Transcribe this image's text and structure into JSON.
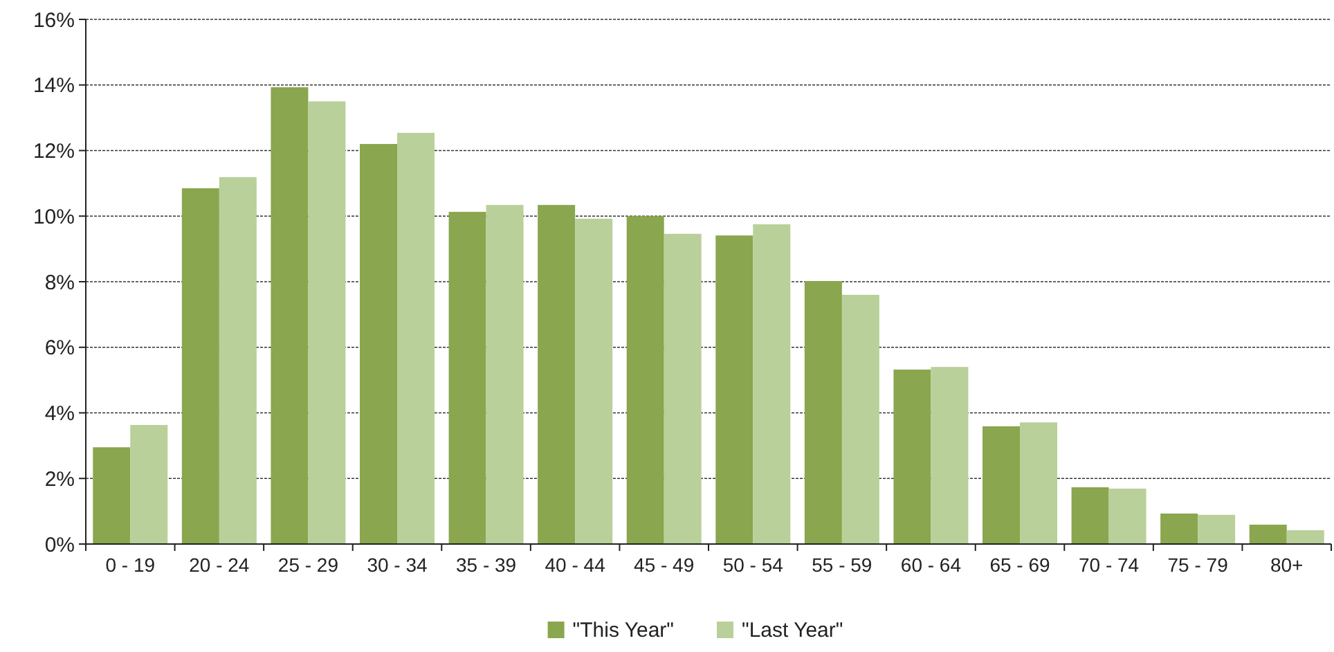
{
  "chart_data": {
    "type": "bar",
    "categories": [
      "0 - 19",
      "20 - 24",
      "25 - 29",
      "30 - 34",
      "35 - 39",
      "40 - 44",
      "45 - 49",
      "50 - 54",
      "55 - 59",
      "60 - 64",
      "65 - 69",
      "70 - 74",
      "75 - 79",
      "80+"
    ],
    "series": [
      {
        "name": "\"This Year\"",
        "color": "#8aa64e",
        "values": [
          2.95,
          10.85,
          13.93,
          12.2,
          10.13,
          10.34,
          10.0,
          9.41,
          8.02,
          5.32,
          3.59,
          1.73,
          0.93,
          0.59
        ]
      },
      {
        "name": "\"Last Year\"",
        "color": "#b9d09a",
        "values": [
          3.63,
          11.19,
          13.5,
          12.54,
          10.34,
          9.92,
          9.46,
          9.75,
          7.6,
          5.4,
          3.71,
          1.69,
          0.89,
          0.42
        ]
      }
    ],
    "ylim": [
      0,
      16
    ],
    "yticks": [
      {
        "value": 0,
        "label": "0%"
      },
      {
        "value": 2,
        "label": "2%"
      },
      {
        "value": 4,
        "label": "4%"
      },
      {
        "value": 6,
        "label": "6%"
      },
      {
        "value": 8,
        "label": "8%"
      },
      {
        "value": 10,
        "label": "10%"
      },
      {
        "value": 12,
        "label": "12%"
      },
      {
        "value": 14,
        "label": "14%"
      },
      {
        "value": 16,
        "label": "16%"
      }
    ],
    "grid": "y",
    "legend": "bottom"
  }
}
